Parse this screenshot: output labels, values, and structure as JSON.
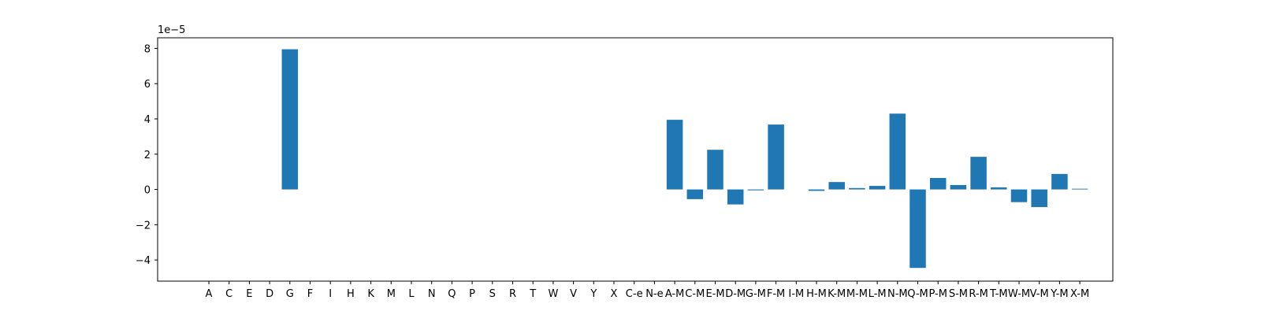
{
  "chart_data": {
    "type": "bar",
    "title": "",
    "xlabel": "",
    "ylabel": "",
    "scale_label": "1e−5",
    "ylim": [
      -5.2,
      8.6
    ],
    "yticks": [
      -4,
      -2,
      0,
      2,
      4,
      6,
      8
    ],
    "ytick_labels": [
      "−4",
      "−2",
      "0",
      "2",
      "4",
      "6",
      "8"
    ],
    "categories": [
      "A",
      "C",
      "E",
      "D",
      "G",
      "F",
      "I",
      "H",
      "K",
      "M",
      "L",
      "N",
      "Q",
      "P",
      "S",
      "R",
      "T",
      "W",
      "V",
      "Y",
      "X",
      "C-e",
      "N-e",
      "A-M",
      "C-M",
      "E-M",
      "D-M",
      "G-M",
      "F-M",
      "I-M",
      "H-M",
      "K-M",
      "M-M",
      "L-M",
      "N-M",
      "Q-M",
      "P-M",
      "S-M",
      "R-M",
      "T-M",
      "W-M",
      "V-M",
      "Y-M",
      "X-M"
    ],
    "values": [
      0,
      0,
      0,
      0,
      7.95,
      0,
      0,
      0,
      0,
      0,
      0,
      0,
      0,
      0,
      0,
      0,
      0,
      0,
      0,
      0,
      0,
      0,
      0,
      3.95,
      -0.55,
      2.25,
      -0.85,
      -0.05,
      3.68,
      0,
      -0.08,
      0.42,
      0.08,
      0.2,
      4.3,
      -4.45,
      0.65,
      0.25,
      1.85,
      0.12,
      -0.72,
      -1.0,
      0.88,
      0.04
    ],
    "bar_color": "#1f77b4"
  }
}
